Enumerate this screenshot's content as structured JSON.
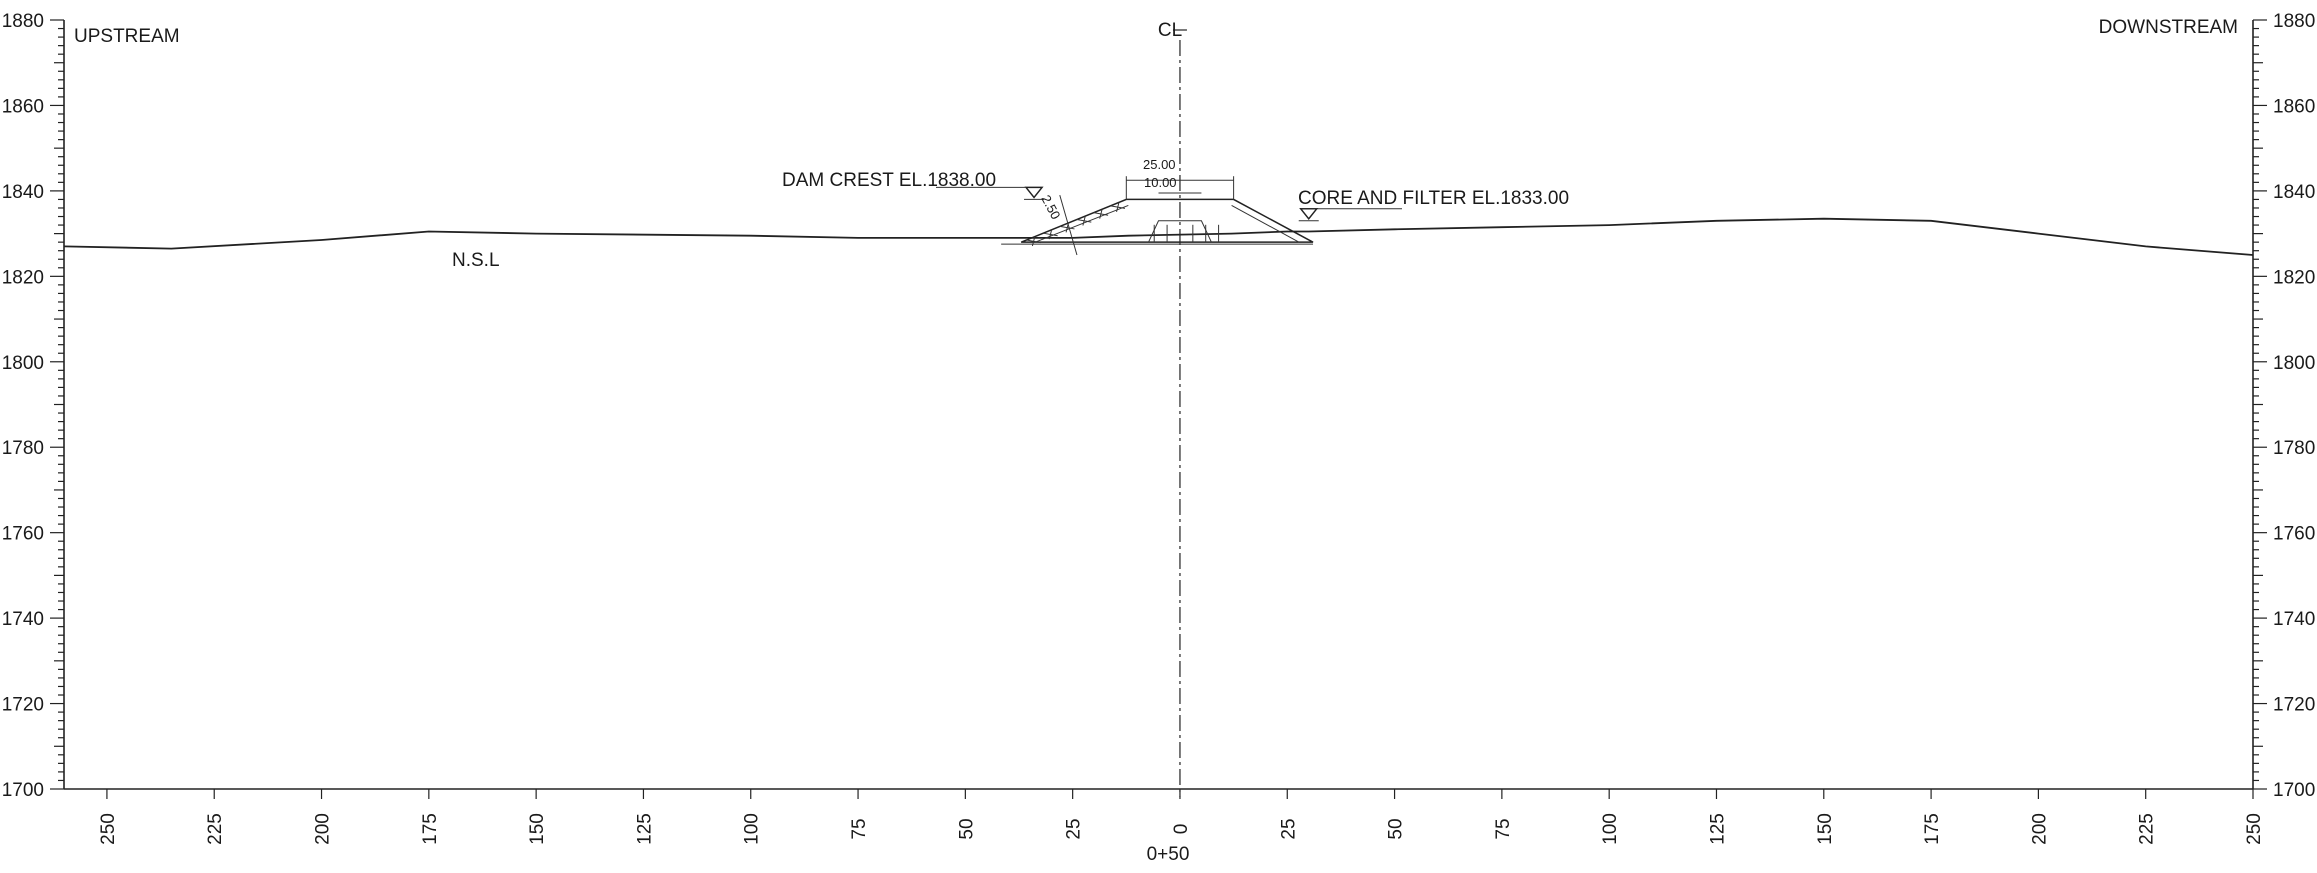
{
  "labels": {
    "upstream": "UPSTREAM",
    "downstream": "DOWNSTREAM",
    "centerline": "CL",
    "nsl": "N.S.L",
    "dam_crest": "DAM CREST EL.1838.00",
    "core_filter": "CORE AND FILTER EL.1833.00",
    "crest_width": "25.00",
    "core_width": "10.00",
    "slope": "2.50",
    "chainage": "0+50"
  },
  "colors": {
    "line": "#222222",
    "background": "#ffffff"
  },
  "chart_data": {
    "type": "line",
    "xlim": [
      -260,
      250
    ],
    "ylim": [
      1700,
      1880
    ],
    "y_ticks": [
      1700,
      1720,
      1740,
      1760,
      1780,
      1800,
      1820,
      1840,
      1860,
      1880
    ],
    "y_tick_labels": [
      "1700",
      "1720",
      "1740",
      "1760",
      "1780",
      "1800",
      "1820",
      "1840",
      "1860",
      "1880"
    ],
    "x_ticks": [
      -250,
      -225,
      -200,
      -175,
      -150,
      -125,
      -100,
      -75,
      -50,
      -25,
      0,
      25,
      50,
      75,
      100,
      125,
      150,
      175,
      200,
      225,
      250
    ],
    "x_tick_labels": [
      "250",
      "225",
      "200",
      "175",
      "150",
      "125",
      "100",
      "75",
      "50",
      "25",
      "0",
      "25",
      "50",
      "75",
      "100",
      "125",
      "150",
      "175",
      "200",
      "225",
      "250"
    ],
    "series": [
      {
        "x": [
          -260,
          -235,
          -200,
          -175,
          -150,
          -100,
          -75,
          -50,
          -35,
          -25,
          -12,
          12,
          25,
          30,
          50,
          75,
          100,
          125,
          150,
          175,
          200,
          225,
          250
        ],
        "y": [
          1827,
          1826.5,
          1828.5,
          1830.5,
          1830,
          1829.5,
          1829,
          1829,
          1829,
          1829,
          1829.5,
          1830,
          1830.5,
          1830.5,
          1831,
          1831.5,
          1832,
          1833,
          1833.5,
          1833,
          1830,
          1827,
          1825
        ]
      }
    ],
    "dam": {
      "crest_el": 1838,
      "core_el": 1833,
      "base_el": 1828,
      "crest_x": [
        -12.5,
        12.5
      ],
      "upstream_toe_x": -37,
      "downstream_toe_x": 31,
      "core_x": [
        -5,
        5
      ]
    }
  }
}
